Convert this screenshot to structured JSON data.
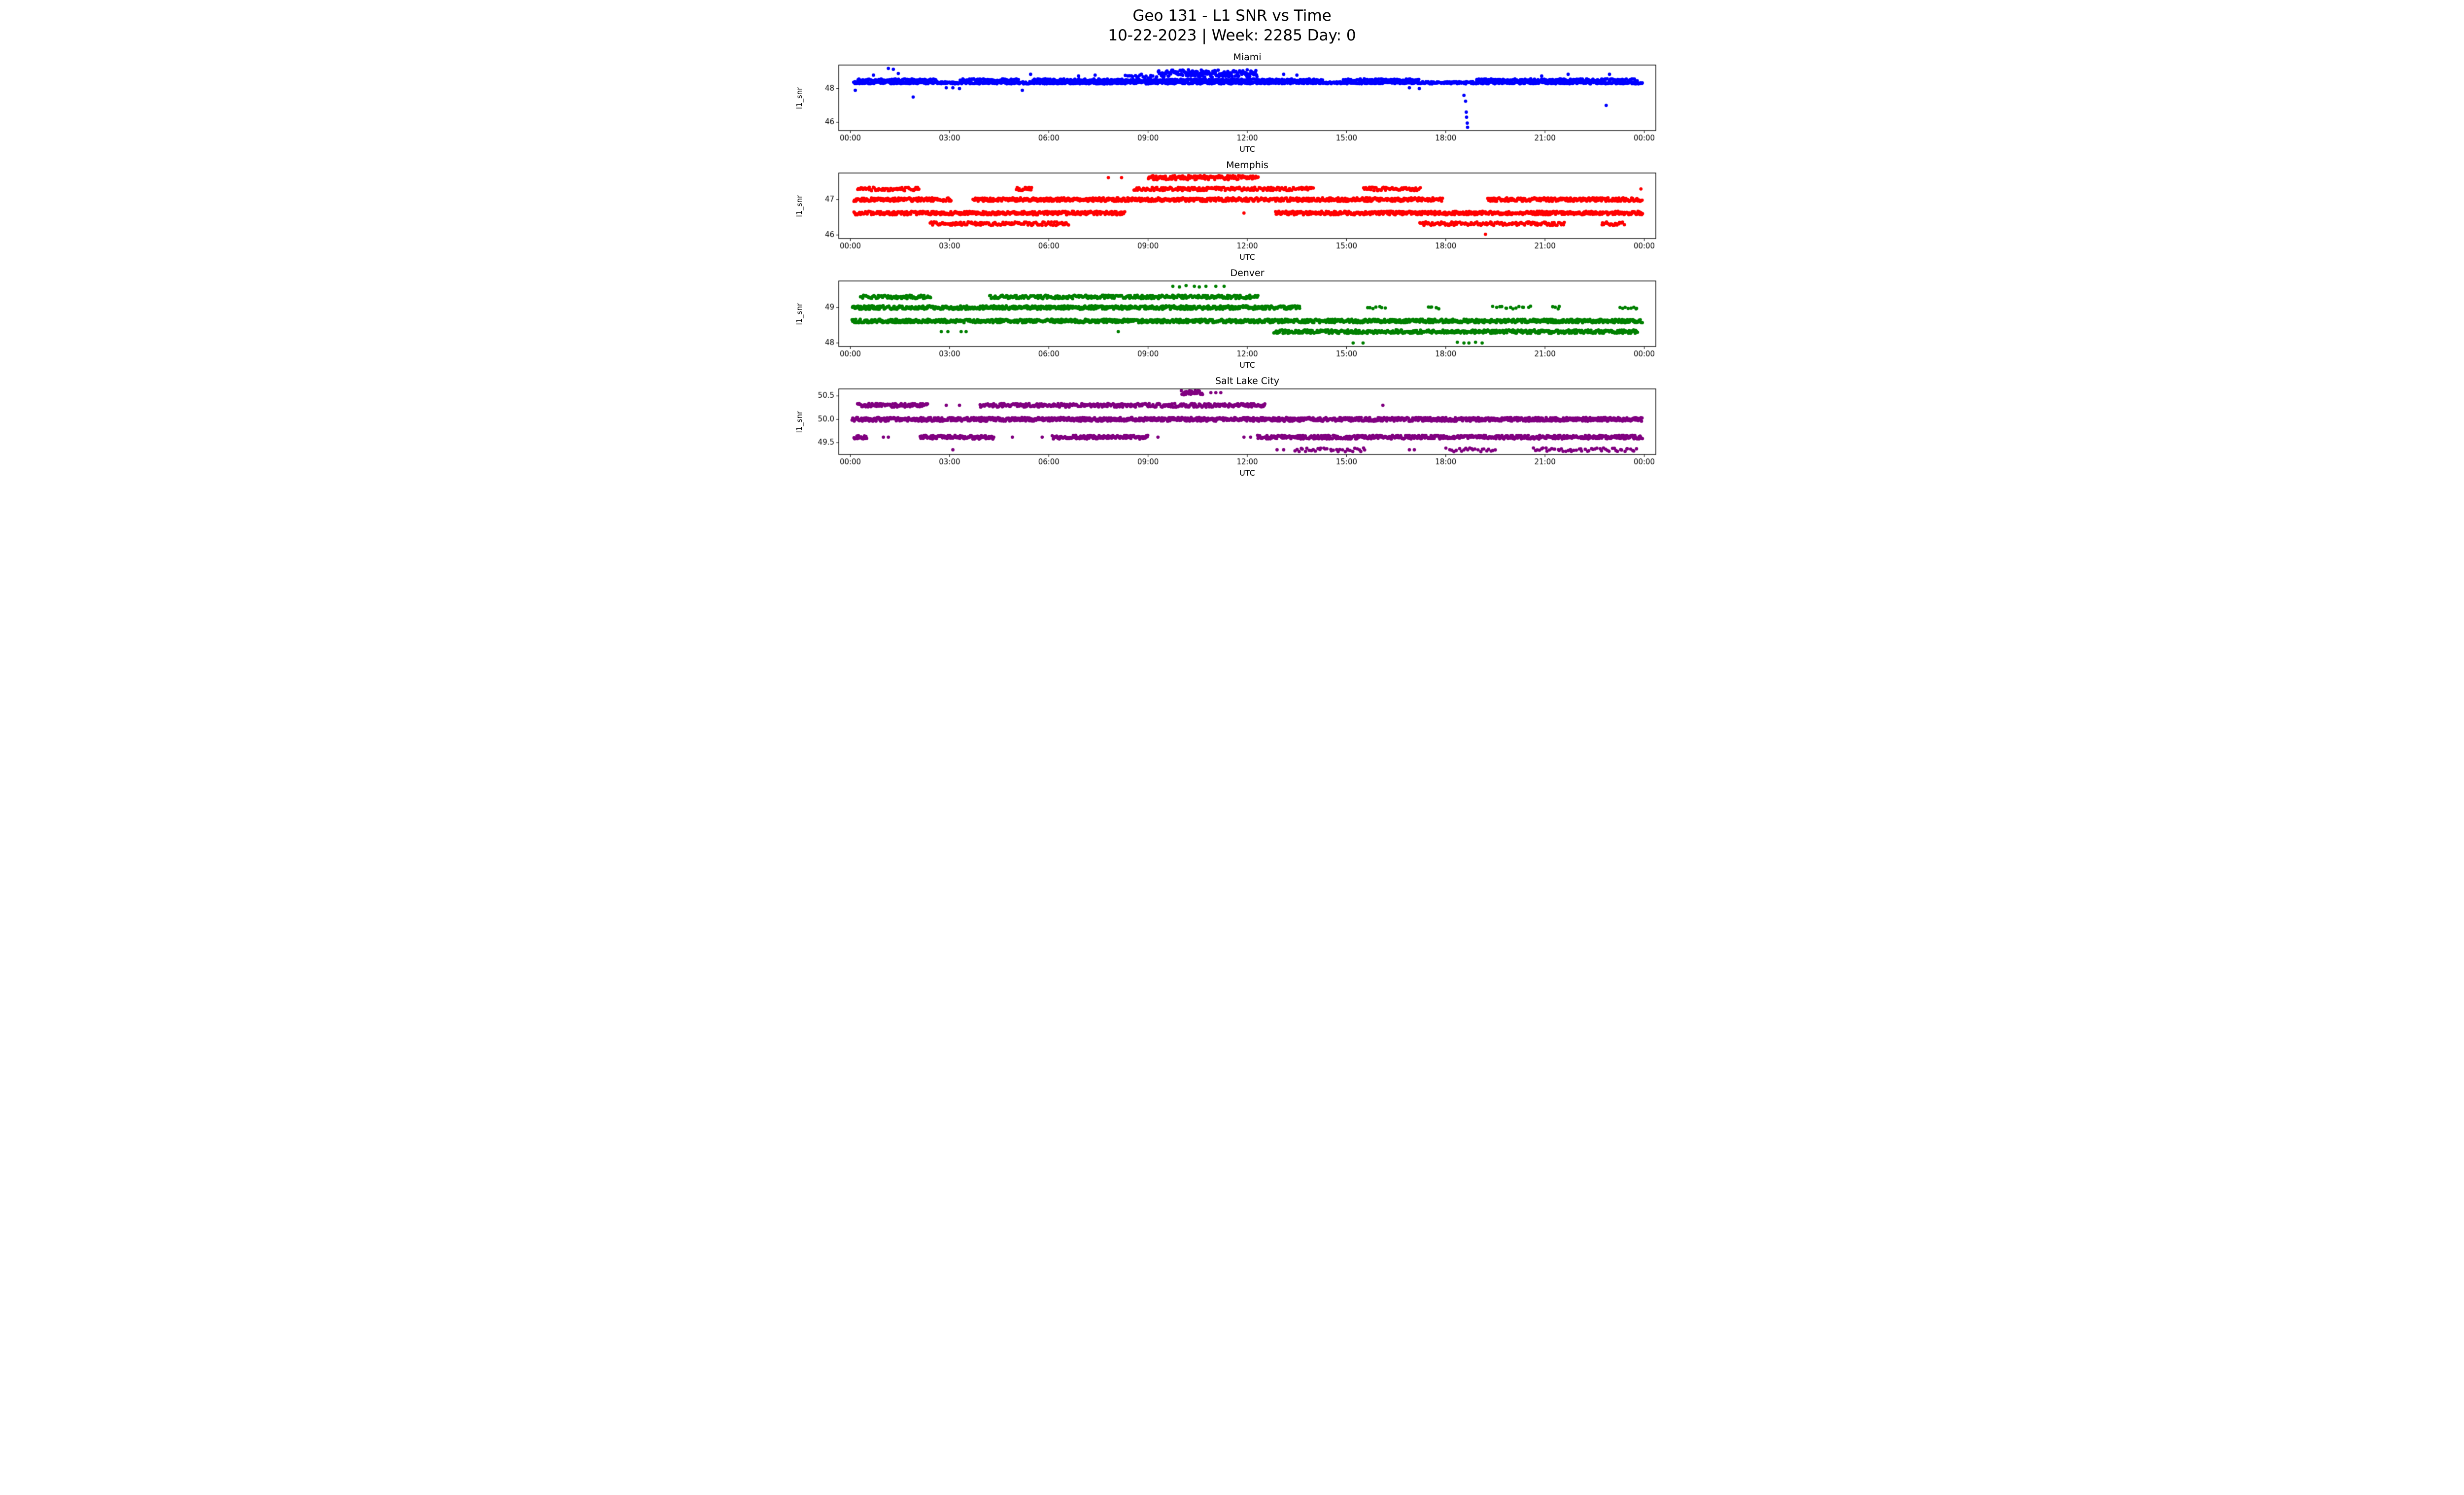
{
  "title": "Geo 131 - L1 SNR vs Time",
  "subtitle": "10-22-2023 | Week: 2285 Day: 0",
  "chart_data": [
    {
      "type": "scatter",
      "title": "Miami",
      "color": "#0000ff",
      "xlabel": "UTC",
      "ylabel": "l1_snr",
      "xlim": [
        -0.35,
        24.35
      ],
      "ylim": [
        45.5,
        49.4
      ],
      "xticks": {
        "values": [
          0,
          3,
          6,
          9,
          12,
          15,
          18,
          21,
          24
        ],
        "labels": [
          "00:00",
          "03:00",
          "06:00",
          "09:00",
          "12:00",
          "15:00",
          "18:00",
          "21:00",
          "00:00"
        ]
      },
      "yticks": {
        "values": [
          46,
          48
        ],
        "labels": [
          "46",
          "48"
        ]
      },
      "bands": [
        {
          "y": 48.35,
          "jitter_y": 0.07,
          "density": 48,
          "segments": [
            [
              0.1,
              23.95
            ]
          ]
        },
        {
          "y": 48.52,
          "jitter_y": 0.06,
          "density": 26,
          "segments": [
            [
              0.2,
              2.6
            ],
            [
              3.3,
              5.1
            ],
            [
              5.5,
              14.3
            ],
            [
              14.9,
              17.2
            ],
            [
              18.9,
              23.8
            ]
          ]
        },
        {
          "y": 48.9,
          "jitter_y": 0.22,
          "density": 55,
          "segments": [
            [
              9.3,
              12.3
            ]
          ]
        },
        {
          "y": 48.72,
          "jitter_y": 0.1,
          "density": 18,
          "segments": [
            [
              8.3,
              9.3
            ]
          ]
        }
      ],
      "points": [
        [
          0.15,
          47.9
        ],
        [
          0.7,
          48.8
        ],
        [
          1.15,
          49.2
        ],
        [
          1.3,
          49.15
        ],
        [
          1.45,
          48.9
        ],
        [
          1.9,
          47.5
        ],
        [
          2.9,
          48.05
        ],
        [
          3.1,
          48.05
        ],
        [
          3.3,
          48.0
        ],
        [
          5.2,
          47.9
        ],
        [
          5.45,
          48.85
        ],
        [
          6.9,
          48.75
        ],
        [
          7.4,
          48.8
        ],
        [
          8.5,
          48.75
        ],
        [
          8.8,
          48.85
        ],
        [
          13.1,
          48.85
        ],
        [
          13.5,
          48.8
        ],
        [
          16.9,
          48.05
        ],
        [
          17.2,
          48.0
        ],
        [
          18.55,
          47.6
        ],
        [
          18.6,
          47.25
        ],
        [
          18.62,
          46.6
        ],
        [
          18.63,
          46.3
        ],
        [
          18.65,
          45.95
        ],
        [
          18.66,
          45.7
        ],
        [
          20.9,
          48.75
        ],
        [
          21.7,
          48.85
        ],
        [
          22.85,
          47.0
        ],
        [
          22.95,
          48.85
        ]
      ]
    },
    {
      "type": "scatter",
      "title": "Memphis",
      "color": "#ff0000",
      "xlabel": "UTC",
      "ylabel": "l1_snr",
      "xlim": [
        -0.35,
        24.35
      ],
      "ylim": [
        45.9,
        47.75
      ],
      "xticks": {
        "values": [
          0,
          3,
          6,
          9,
          12,
          15,
          18,
          21,
          24
        ],
        "labels": [
          "00:00",
          "03:00",
          "06:00",
          "09:00",
          "12:00",
          "15:00",
          "18:00",
          "21:00",
          "00:00"
        ]
      },
      "yticks": {
        "values": [
          46,
          47
        ],
        "labels": [
          "46",
          "47"
        ]
      },
      "bands": [
        {
          "y": 47.0,
          "jitter_y": 0.05,
          "density": 50,
          "segments": [
            [
              0.1,
              3.05
            ],
            [
              3.7,
              17.9
            ],
            [
              19.25,
              23.95
            ]
          ]
        },
        {
          "y": 46.62,
          "jitter_y": 0.05,
          "density": 50,
          "segments": [
            [
              0.1,
              8.3
            ],
            [
              12.85,
              23.95
            ]
          ]
        },
        {
          "y": 46.32,
          "jitter_y": 0.05,
          "density": 32,
          "segments": [
            [
              2.4,
              6.6
            ],
            [
              17.2,
              21.6
            ],
            [
              22.7,
              23.4
            ]
          ]
        },
        {
          "y": 47.3,
          "jitter_y": 0.05,
          "density": 32,
          "segments": [
            [
              0.2,
              2.1
            ],
            [
              5.0,
              5.5
            ],
            [
              8.55,
              14.0
            ],
            [
              15.5,
              17.25
            ]
          ]
        },
        {
          "y": 47.62,
          "jitter_y": 0.06,
          "density": 42,
          "segments": [
            [
              9.0,
              12.35
            ]
          ]
        }
      ],
      "points": [
        [
          7.8,
          47.62
        ],
        [
          8.2,
          47.62
        ],
        [
          11.9,
          46.62
        ],
        [
          19.2,
          46.02
        ],
        [
          23.9,
          47.3
        ]
      ]
    },
    {
      "type": "scatter",
      "title": "Denver",
      "color": "#008000",
      "xlabel": "UTC",
      "ylabel": "l1_snr",
      "xlim": [
        -0.35,
        24.35
      ],
      "ylim": [
        47.9,
        49.75
      ],
      "xticks": {
        "values": [
          0,
          3,
          6,
          9,
          12,
          15,
          18,
          21,
          24
        ],
        "labels": [
          "00:00",
          "03:00",
          "06:00",
          "09:00",
          "12:00",
          "15:00",
          "18:00",
          "21:00",
          "00:00"
        ]
      },
      "yticks": {
        "values": [
          48,
          49
        ],
        "labels": [
          "48",
          "49"
        ]
      },
      "bands": [
        {
          "y": 49.0,
          "jitter_y": 0.05,
          "density": 52,
          "segments": [
            [
              0.05,
              13.6
            ]
          ]
        },
        {
          "y": 49.0,
          "jitter_y": 0.04,
          "density": 12,
          "segments": [
            [
              15.6,
              16.2
            ],
            [
              17.4,
              17.8
            ],
            [
              19.4,
              20.6
            ],
            [
              21.2,
              21.5
            ],
            [
              23.2,
              23.85
            ]
          ]
        },
        {
          "y": 48.62,
          "jitter_y": 0.05,
          "density": 52,
          "segments": [
            [
              0.05,
              23.95
            ]
          ]
        },
        {
          "y": 48.32,
          "jitter_y": 0.05,
          "density": 48,
          "segments": [
            [
              12.8,
              23.8
            ]
          ]
        },
        {
          "y": 49.3,
          "jitter_y": 0.05,
          "density": 34,
          "segments": [
            [
              0.3,
              2.45
            ],
            [
              4.2,
              12.35
            ]
          ]
        }
      ],
      "points": [
        [
          9.75,
          49.6
        ],
        [
          9.95,
          49.58
        ],
        [
          10.15,
          49.62
        ],
        [
          10.4,
          49.6
        ],
        [
          10.55,
          49.58
        ],
        [
          10.75,
          49.6
        ],
        [
          11.05,
          49.6
        ],
        [
          11.3,
          49.6
        ],
        [
          2.75,
          48.32
        ],
        [
          2.95,
          48.32
        ],
        [
          3.35,
          48.32
        ],
        [
          3.5,
          48.32
        ],
        [
          8.1,
          48.32
        ],
        [
          15.2,
          48.0
        ],
        [
          15.5,
          48.0
        ],
        [
          18.35,
          48.02
        ],
        [
          18.55,
          48.0
        ],
        [
          18.7,
          48.0
        ],
        [
          18.9,
          48.02
        ],
        [
          19.1,
          48.0
        ]
      ]
    },
    {
      "type": "scatter",
      "title": "Salt Lake City",
      "color": "#800080",
      "xlabel": "UTC",
      "ylabel": "l1_snr",
      "xlim": [
        -0.35,
        24.35
      ],
      "ylim": [
        49.25,
        50.65
      ],
      "xticks": {
        "values": [
          0,
          3,
          6,
          9,
          12,
          15,
          18,
          21,
          24
        ],
        "labels": [
          "00:00",
          "03:00",
          "06:00",
          "09:00",
          "12:00",
          "15:00",
          "18:00",
          "21:00",
          "00:00"
        ]
      },
      "yticks": {
        "values": [
          49.5,
          50.0,
          50.5
        ],
        "labels": [
          "49.5",
          "50.0",
          "50.5"
        ]
      },
      "bands": [
        {
          "y": 50.0,
          "jitter_y": 0.04,
          "density": 58,
          "segments": [
            [
              0.05,
              23.95
            ]
          ]
        },
        {
          "y": 49.62,
          "jitter_y": 0.04,
          "density": 46,
          "segments": [
            [
              0.1,
              0.5
            ],
            [
              2.1,
              4.35
            ],
            [
              6.1,
              9.0
            ],
            [
              12.3,
              23.95
            ]
          ]
        },
        {
          "y": 50.3,
          "jitter_y": 0.04,
          "density": 40,
          "segments": [
            [
              0.2,
              2.35
            ],
            [
              3.9,
              12.55
            ]
          ]
        },
        {
          "y": 50.57,
          "jitter_y": 0.05,
          "density": 46,
          "segments": [
            [
              10.0,
              10.65
            ]
          ]
        },
        {
          "y": 49.35,
          "jitter_y": 0.04,
          "density": 16,
          "segments": [
            [
              13.4,
              15.6
            ],
            [
              18.0,
              19.5
            ],
            [
              20.6,
              23.8
            ]
          ]
        }
      ],
      "points": [
        [
          1.0,
          49.62
        ],
        [
          1.15,
          49.62
        ],
        [
          4.9,
          49.62
        ],
        [
          5.8,
          49.62
        ],
        [
          9.3,
          49.62
        ],
        [
          11.9,
          49.62
        ],
        [
          12.1,
          49.62
        ],
        [
          2.9,
          50.3
        ],
        [
          3.3,
          50.3
        ],
        [
          16.1,
          50.3
        ],
        [
          10.9,
          50.57
        ],
        [
          11.05,
          50.57
        ],
        [
          11.2,
          50.57
        ],
        [
          3.1,
          49.35
        ],
        [
          12.9,
          49.35
        ],
        [
          13.1,
          49.35
        ],
        [
          16.9,
          49.35
        ],
        [
          17.05,
          49.35
        ]
      ]
    }
  ]
}
